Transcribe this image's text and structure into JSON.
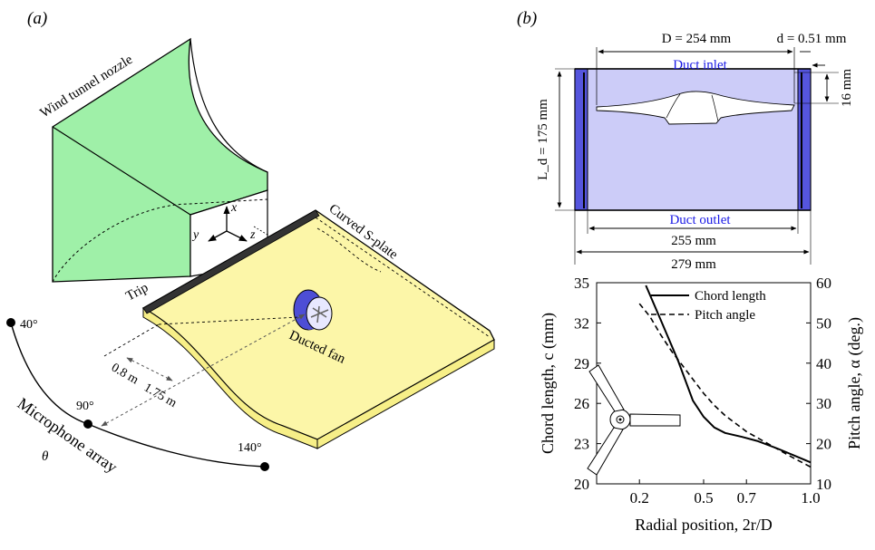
{
  "panel_a": {
    "label": "(a)",
    "nozzle_label": "Wind tunnel nozzle",
    "axes": {
      "x": "x",
      "y": "y",
      "z": "z"
    },
    "trip_label": "Trip",
    "plate_label": "Curved S-plate",
    "fan_label": "Ducted fan",
    "dist_1": "0.8 m",
    "dist_2": "1.75 m",
    "mic_angles": [
      "40°",
      "90°",
      "140°"
    ],
    "mic_array_label": "Microphone array",
    "theta": "θ"
  },
  "panel_b": {
    "label": "(b)",
    "D_label": "D = 254 mm",
    "d_label": "d = 0.51 mm",
    "inlet_label": "Duct inlet",
    "outlet_label": "Duct outlet",
    "Ld_label": "L_d = 175 mm",
    "h16_label": "16 mm",
    "w255_label": "255 mm",
    "w279_label": "279 mm"
  },
  "chart_data": {
    "type": "line",
    "xlabel": "Radial position, 2r/D",
    "ylabel": "Chord length, c (mm)",
    "y2label": "Pitch angle, α (deg.)",
    "xticks": [
      "0.2",
      "0.5",
      "0.7",
      "1.0"
    ],
    "xtick_values": [
      0.2,
      0.5,
      0.7,
      1.0
    ],
    "xlim": [
      0.0,
      1.0
    ],
    "ylim": [
      20,
      35
    ],
    "yticks": [
      20,
      23,
      26,
      29,
      32,
      35
    ],
    "y2lim": [
      10,
      60
    ],
    "y2ticks": [
      10,
      20,
      30,
      40,
      50,
      60
    ],
    "legend_position": "top-right",
    "series": [
      {
        "name": "Chord length",
        "axis": "left",
        "style": "solid",
        "x": [
          0.23,
          0.3,
          0.38,
          0.45,
          0.5,
          0.55,
          0.6,
          0.68,
          0.75,
          0.85,
          1.0
        ],
        "y": [
          34.8,
          32.2,
          29.2,
          26.2,
          25.0,
          24.2,
          23.8,
          23.5,
          23.2,
          22.6,
          21.6
        ]
      },
      {
        "name": "Pitch angle",
        "axis": "right",
        "style": "dashed",
        "x": [
          0.2,
          0.25,
          0.3,
          0.35,
          0.4,
          0.45,
          0.5,
          0.55,
          0.6,
          0.65,
          0.7,
          0.8,
          0.9,
          1.0
        ],
        "y": [
          54.8,
          51.5,
          47.0,
          43.0,
          39.5,
          36.0,
          32.5,
          29.5,
          27.0,
          25.0,
          23.0,
          20.0,
          17.0,
          14.2
        ]
      }
    ]
  }
}
